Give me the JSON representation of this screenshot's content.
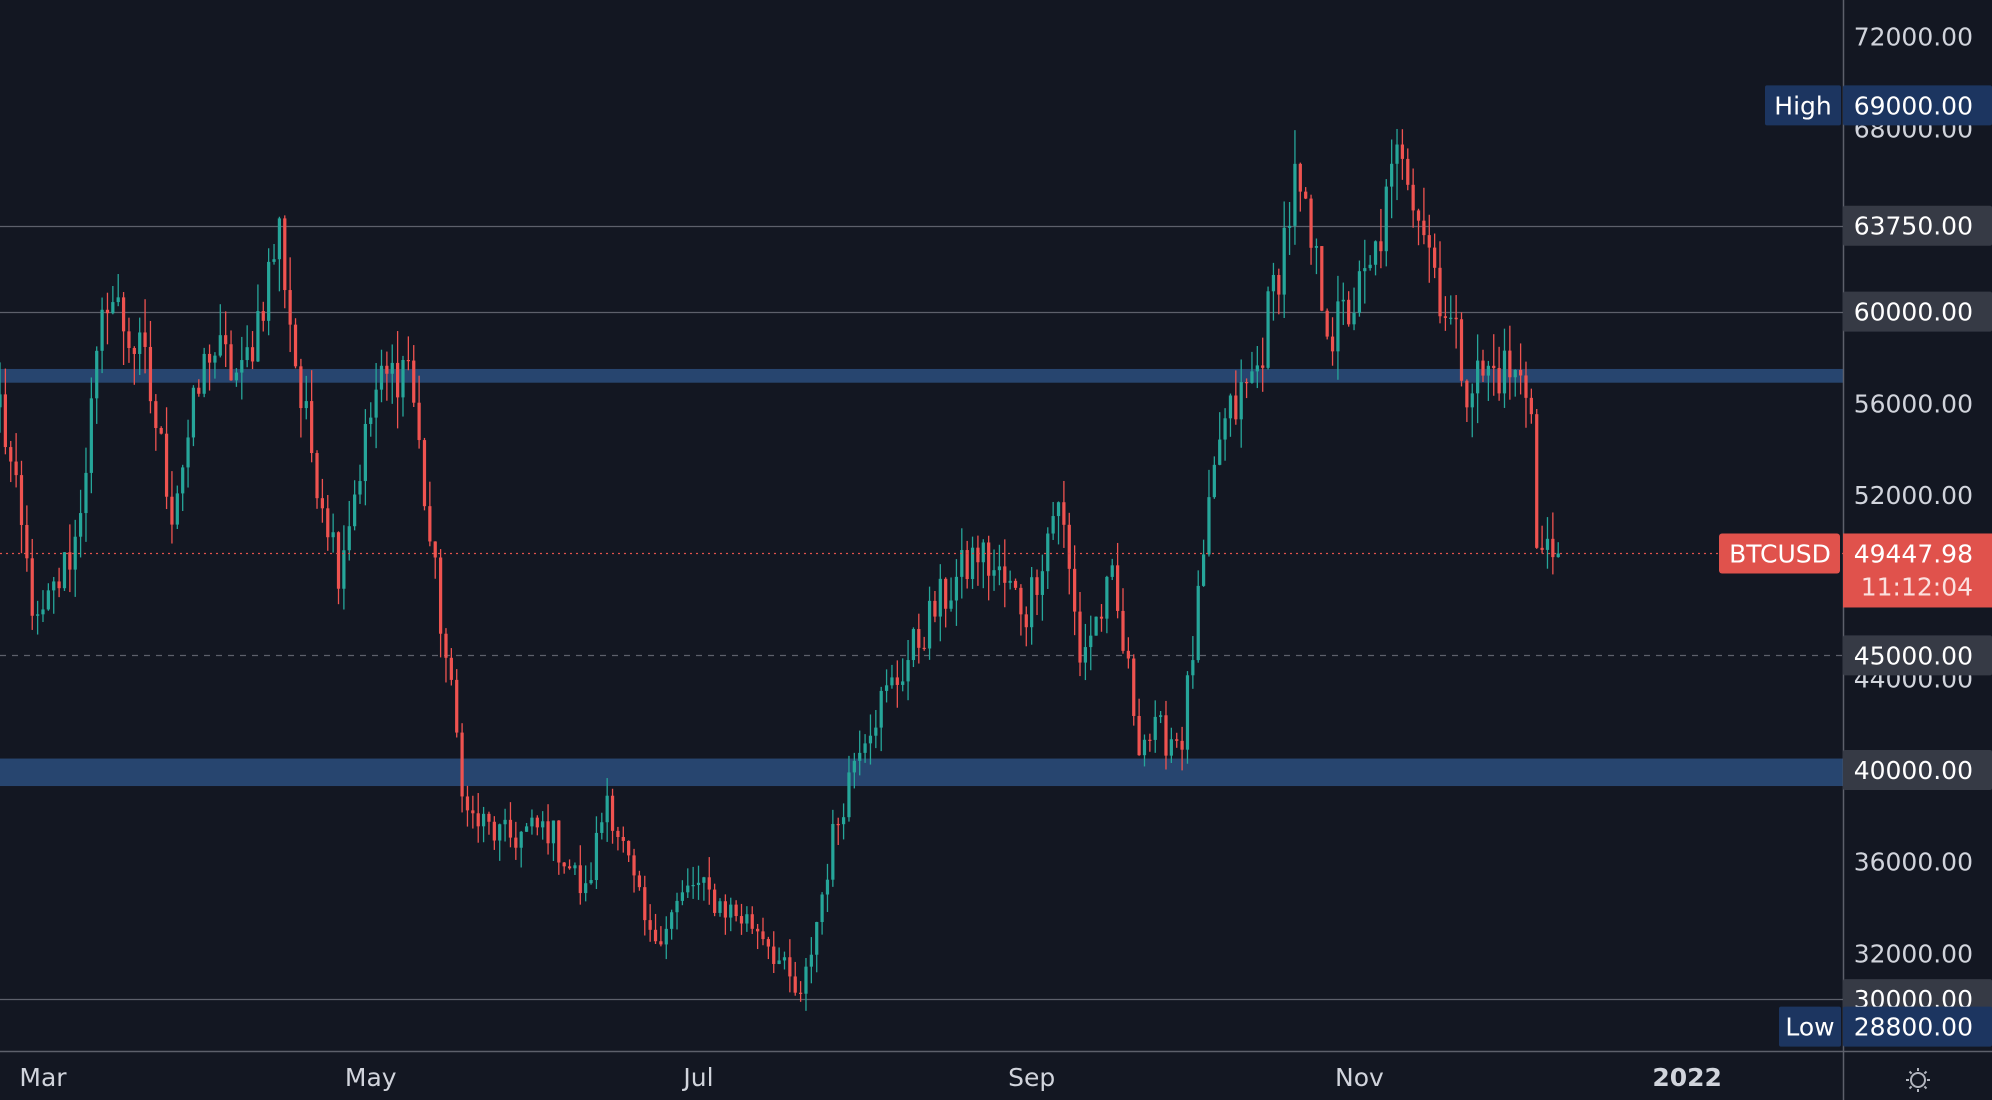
{
  "chart_data": {
    "type": "candlestick",
    "symbol": "BTCUSD",
    "last_price": "49447.98",
    "last_price_value": 49447.98,
    "countdown": "11:12:04",
    "x_axis_labels": [
      "Mar",
      "May",
      "Jul",
      "Sep",
      "Nov",
      "2022"
    ],
    "x_range": [
      "2021-02-21",
      "2022-01-30"
    ],
    "ylim": [
      25600,
      73600
    ],
    "y_tick_labels": [
      "72000.00",
      "68000.00",
      "56000.00",
      "52000.00",
      "44000.00",
      "36000.00",
      "32000.00"
    ],
    "y_tick_values": [
      72000,
      68000,
      56000,
      52000,
      44000,
      36000,
      32000
    ],
    "price_tags": [
      {
        "label": "High",
        "price": "69000.00",
        "value": 69000
      },
      {
        "label": "",
        "price": "63750.00",
        "value": 63750
      },
      {
        "label": "",
        "price": "60000.00",
        "value": 60000
      },
      {
        "label": "",
        "price": "45000.00",
        "value": 45000
      },
      {
        "label": "",
        "price": "40000.00",
        "value": 40000
      },
      {
        "label": "",
        "price": "30000.00",
        "value": 30000
      },
      {
        "label": "Low",
        "price": "28800.00",
        "value": 28800
      }
    ],
    "horizontal_lines": [
      {
        "value": 63750,
        "style": "solid"
      },
      {
        "value": 60000,
        "style": "solid"
      },
      {
        "value": 45000,
        "style": "dashed"
      },
      {
        "value": 30000,
        "style": "solid"
      }
    ],
    "zones": [
      {
        "from": 56900,
        "to": 57500
      },
      {
        "from": 39300,
        "to": 40500
      }
    ],
    "colors": {
      "background": "#131722",
      "up": "#26a69a",
      "down": "#ef5350",
      "zone": "#2a4a78",
      "tag_dark": "#363a45",
      "tag_blue": "#1c3560",
      "price_tag": "#e0524c"
    },
    "close_path": [
      [
        "2021-02-21",
        56000
      ],
      [
        "2021-02-28",
        46000
      ],
      [
        "2021-03-07",
        50000
      ],
      [
        "2021-03-13",
        61000
      ],
      [
        "2021-03-20",
        57500
      ],
      [
        "2021-03-25",
        51500
      ],
      [
        "2021-04-01",
        58500
      ],
      [
        "2021-04-07",
        57000
      ],
      [
        "2021-04-14",
        63500
      ],
      [
        "2021-04-18",
        56000
      ],
      [
        "2021-04-25",
        49000
      ],
      [
        "2021-05-02",
        56500
      ],
      [
        "2021-05-08",
        58000
      ],
      [
        "2021-05-12",
        50000
      ],
      [
        "2021-05-19",
        38000
      ],
      [
        "2021-05-26",
        37000
      ],
      [
        "2021-06-03",
        37500
      ],
      [
        "2021-06-10",
        34500
      ],
      [
        "2021-06-14",
        39000
      ],
      [
        "2021-06-22",
        32500
      ],
      [
        "2021-06-30",
        35000
      ],
      [
        "2021-07-06",
        34000
      ],
      [
        "2021-07-13",
        33000
      ],
      [
        "2021-07-20",
        29800
      ],
      [
        "2021-07-26",
        37000
      ],
      [
        "2021-07-31",
        41500
      ],
      [
        "2021-08-07",
        44000
      ],
      [
        "2021-08-14",
        47000
      ],
      [
        "2021-08-22",
        49500
      ],
      [
        "2021-08-31",
        47000
      ],
      [
        "2021-09-06",
        52000
      ],
      [
        "2021-09-10",
        45000
      ],
      [
        "2021-09-16",
        48000
      ],
      [
        "2021-09-21",
        41500
      ],
      [
        "2021-09-29",
        41500
      ],
      [
        "2021-10-06",
        54500
      ],
      [
        "2021-10-13",
        57500
      ],
      [
        "2021-10-20",
        65500
      ],
      [
        "2021-10-27",
        59000
      ],
      [
        "2021-11-03",
        61500
      ],
      [
        "2021-11-09",
        67500
      ],
      [
        "2021-11-16",
        61000
      ],
      [
        "2021-11-21",
        57000
      ],
      [
        "2021-11-28",
        57500
      ],
      [
        "2021-12-03",
        56500
      ],
      [
        "2021-12-04",
        49500
      ],
      [
        "2021-12-08",
        49447.98
      ]
    ]
  }
}
